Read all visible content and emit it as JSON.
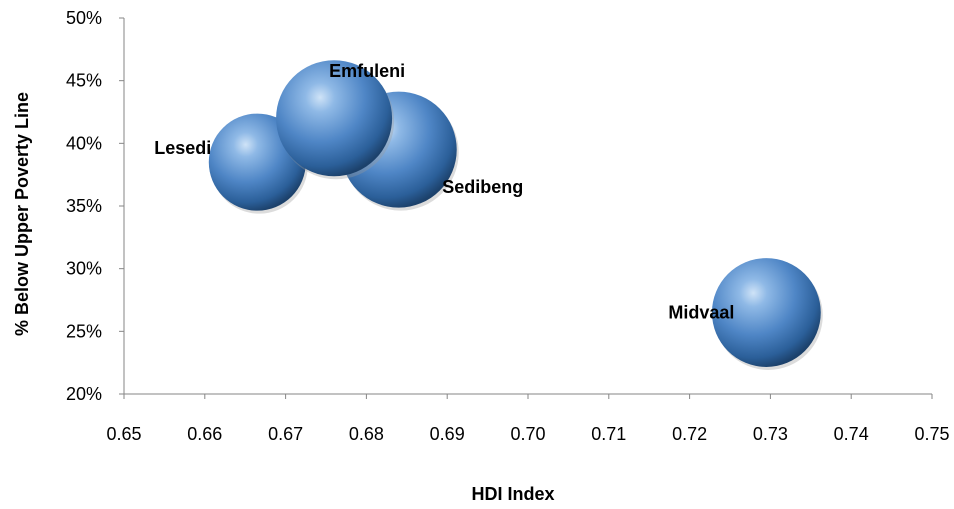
{
  "chart_data": {
    "type": "scatter",
    "title": "",
    "xlabel": "HDI Index",
    "ylabel": "% Below Upper Poverty Line",
    "xlim": [
      0.65,
      0.75
    ],
    "ylim": [
      0.2,
      0.5
    ],
    "x_ticks": [
      "0.65",
      "0.66",
      "0.67",
      "0.68",
      "0.69",
      "0.70",
      "0.71",
      "0.72",
      "0.73",
      "0.74",
      "0.75"
    ],
    "y_ticks": [
      "20%",
      "25%",
      "30%",
      "35%",
      "40%",
      "45%",
      "50%"
    ],
    "grid": false,
    "legend": "none",
    "bubble_color": "#4f81bd",
    "points": [
      {
        "name": "Lesedi",
        "x": 0.6665,
        "y": 0.385,
        "size": 0.7
      },
      {
        "name": "Sedibeng",
        "x": 0.684,
        "y": 0.395,
        "size": 1.0
      },
      {
        "name": "Emfuleni",
        "x": 0.676,
        "y": 0.42,
        "size": 1.0
      },
      {
        "name": "Midvaal",
        "x": 0.7295,
        "y": 0.265,
        "size": 0.88
      }
    ]
  }
}
